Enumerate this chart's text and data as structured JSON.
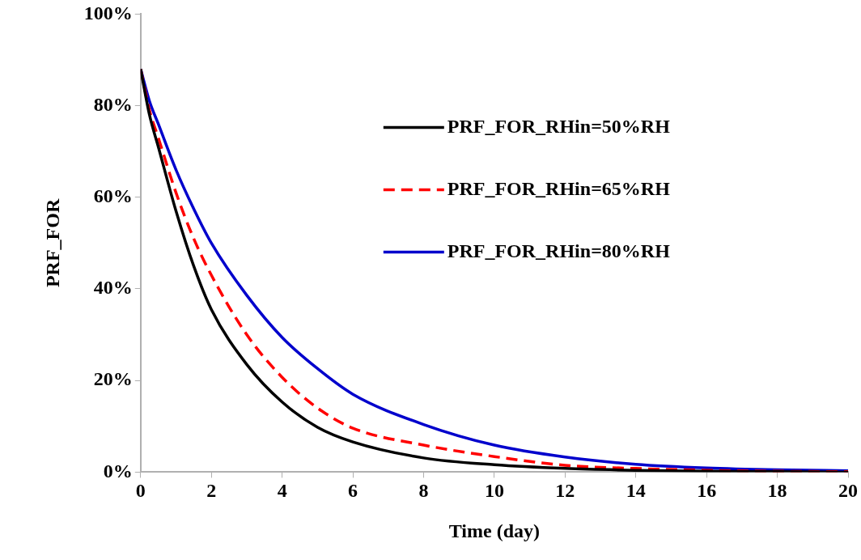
{
  "chart_data": {
    "type": "line",
    "xlabel": "Time (day)",
    "ylabel": "PRF_FOR",
    "xlim": [
      0,
      20
    ],
    "xticks": [
      0,
      2,
      4,
      6,
      8,
      10,
      12,
      14,
      16,
      18,
      20
    ],
    "ylim": [
      0,
      100
    ],
    "yticks": [
      {
        "value": 0,
        "label": "0%"
      },
      {
        "value": 20,
        "label": "20%"
      },
      {
        "value": 40,
        "label": "40%"
      },
      {
        "value": 60,
        "label": "60%"
      },
      {
        "value": 80,
        "label": "80%"
      },
      {
        "value": 100,
        "label": "100%"
      }
    ],
    "grid": false,
    "legend": "right",
    "marker": "none",
    "series": [
      {
        "name": "PRF_FOR_RHin=50%RH",
        "color": "#000000",
        "line_style": "solid",
        "x": [
          0,
          0.25,
          0.5,
          1,
          1.5,
          2,
          3,
          4,
          5,
          6,
          8,
          10,
          12,
          14,
          16,
          18,
          20
        ],
        "values": [
          88,
          78,
          71,
          57,
          45,
          35.5,
          23.5,
          15.3,
          9.8,
          6.6,
          3.1,
          1.6,
          0.8,
          0.4,
          0.2,
          0.1,
          0
        ]
      },
      {
        "name": "PRF_FOR_RHin=65%RH",
        "color": "#ff0000",
        "line_style": "dashed",
        "x": [
          0,
          0.25,
          0.5,
          1,
          1.5,
          2,
          3,
          4,
          5,
          6,
          8,
          10,
          12,
          14,
          16,
          18,
          20
        ],
        "values": [
          88,
          79,
          73,
          61,
          51,
          43,
          30,
          20.7,
          14,
          9.6,
          5.9,
          3.4,
          1.5,
          0.8,
          0.4,
          0.2,
          0.1
        ]
      },
      {
        "name": "PRF_FOR_RHin=80%RH",
        "color": "#0000cc",
        "line_style": "solid",
        "x": [
          0,
          0.25,
          0.5,
          1,
          1.5,
          2,
          3,
          4,
          5,
          6,
          8,
          10,
          12,
          14,
          16,
          18,
          20
        ],
        "values": [
          88,
          81,
          76,
          66,
          57.5,
          50,
          38.6,
          29.4,
          22.6,
          17,
          10.4,
          5.9,
          3.3,
          1.7,
          0.9,
          0.5,
          0.3
        ]
      }
    ]
  }
}
